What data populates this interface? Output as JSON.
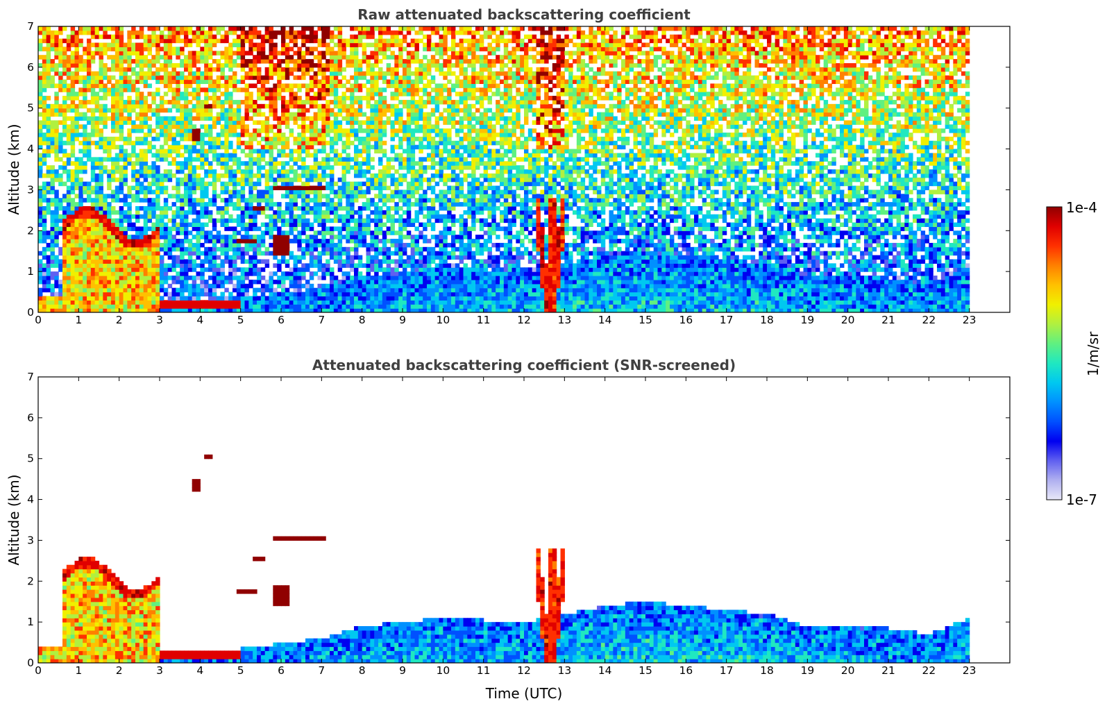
{
  "chart_data": [
    {
      "type": "heatmap",
      "title": "Raw attenuated backscattering coefficient",
      "xlabel": "",
      "ylabel": "Altitude (km)",
      "xlim": [
        0,
        24
      ],
      "ylim": [
        0,
        7
      ],
      "xticks": [
        "0",
        "1",
        "2",
        "3",
        "4",
        "5",
        "6",
        "7",
        "8",
        "9",
        "10",
        "11",
        "12",
        "13",
        "14",
        "15",
        "16",
        "17",
        "18",
        "19",
        "20",
        "21",
        "22",
        "23"
      ],
      "yticks": [
        "0",
        "1",
        "2",
        "3",
        "4",
        "5",
        "6",
        "7"
      ],
      "data_extent_hours": [
        0,
        23
      ],
      "features": [
        {
          "name": "cloud_layer",
          "t": [
            0.6,
            3.05
          ],
          "alt": [
            0.1,
            2.7
          ],
          "level": "high"
        },
        {
          "name": "surface_layer",
          "t": [
            3.0,
            5.0
          ],
          "alt": [
            0.15,
            0.3
          ],
          "level": "very_high"
        },
        {
          "name": "cloud_layer_mid",
          "t": [
            5.8,
            7.1
          ],
          "alt": [
            3.0,
            3.15
          ],
          "level": "very_high"
        },
        {
          "name": "precipitation_column",
          "t": [
            12.3,
            13.0
          ],
          "alt": [
            0,
            2.8
          ],
          "level": "high"
        },
        {
          "name": "boundary_layer",
          "t": [
            7,
            23
          ],
          "alt": [
            0,
            1.0
          ],
          "level": "low"
        }
      ],
      "grid": false
    },
    {
      "type": "heatmap",
      "title": "Attenuated backscattering coefficient (SNR-screened)",
      "xlabel": "Time (UTC)",
      "ylabel": "Altitude (km)",
      "xlim": [
        0,
        24
      ],
      "ylim": [
        0,
        7
      ],
      "xticks": [
        "0",
        "1",
        "2",
        "3",
        "4",
        "5",
        "6",
        "7",
        "8",
        "9",
        "10",
        "11",
        "12",
        "13",
        "14",
        "15",
        "16",
        "17",
        "18",
        "19",
        "20",
        "21",
        "22",
        "23"
      ],
      "yticks": [
        "0",
        "1",
        "2",
        "3",
        "4",
        "5",
        "6",
        "7"
      ],
      "data_extent_hours": [
        0,
        23
      ],
      "boundary_layer_top_km": [
        [
          0,
          0.4
        ],
        [
          0.6,
          0.4
        ],
        [
          3.1,
          0.3
        ],
        [
          5,
          0.35
        ],
        [
          7,
          0.6
        ],
        [
          8,
          0.9
        ],
        [
          10,
          1.1
        ],
        [
          12,
          1.0
        ],
        [
          13,
          1.2
        ],
        [
          14,
          1.4
        ],
        [
          15,
          1.5
        ],
        [
          17,
          1.3
        ],
        [
          18,
          1.2
        ],
        [
          19,
          0.9
        ],
        [
          21,
          0.85
        ],
        [
          22,
          0.7
        ],
        [
          23,
          1.1
        ]
      ],
      "grid": false
    }
  ],
  "colorbar": {
    "label": "1/m/sr",
    "max_label": "1e-4",
    "min_label": "1e-7",
    "scale": "log",
    "colormap": [
      "#e8e8f8",
      "#b0b0f0",
      "#6060f0",
      "#0000f0",
      "#0050ff",
      "#0090ff",
      "#00c8f0",
      "#20e8c0",
      "#60f080",
      "#b0f040",
      "#f0f000",
      "#ffc000",
      "#ff8000",
      "#ff3000",
      "#e00000",
      "#900000"
    ]
  }
}
